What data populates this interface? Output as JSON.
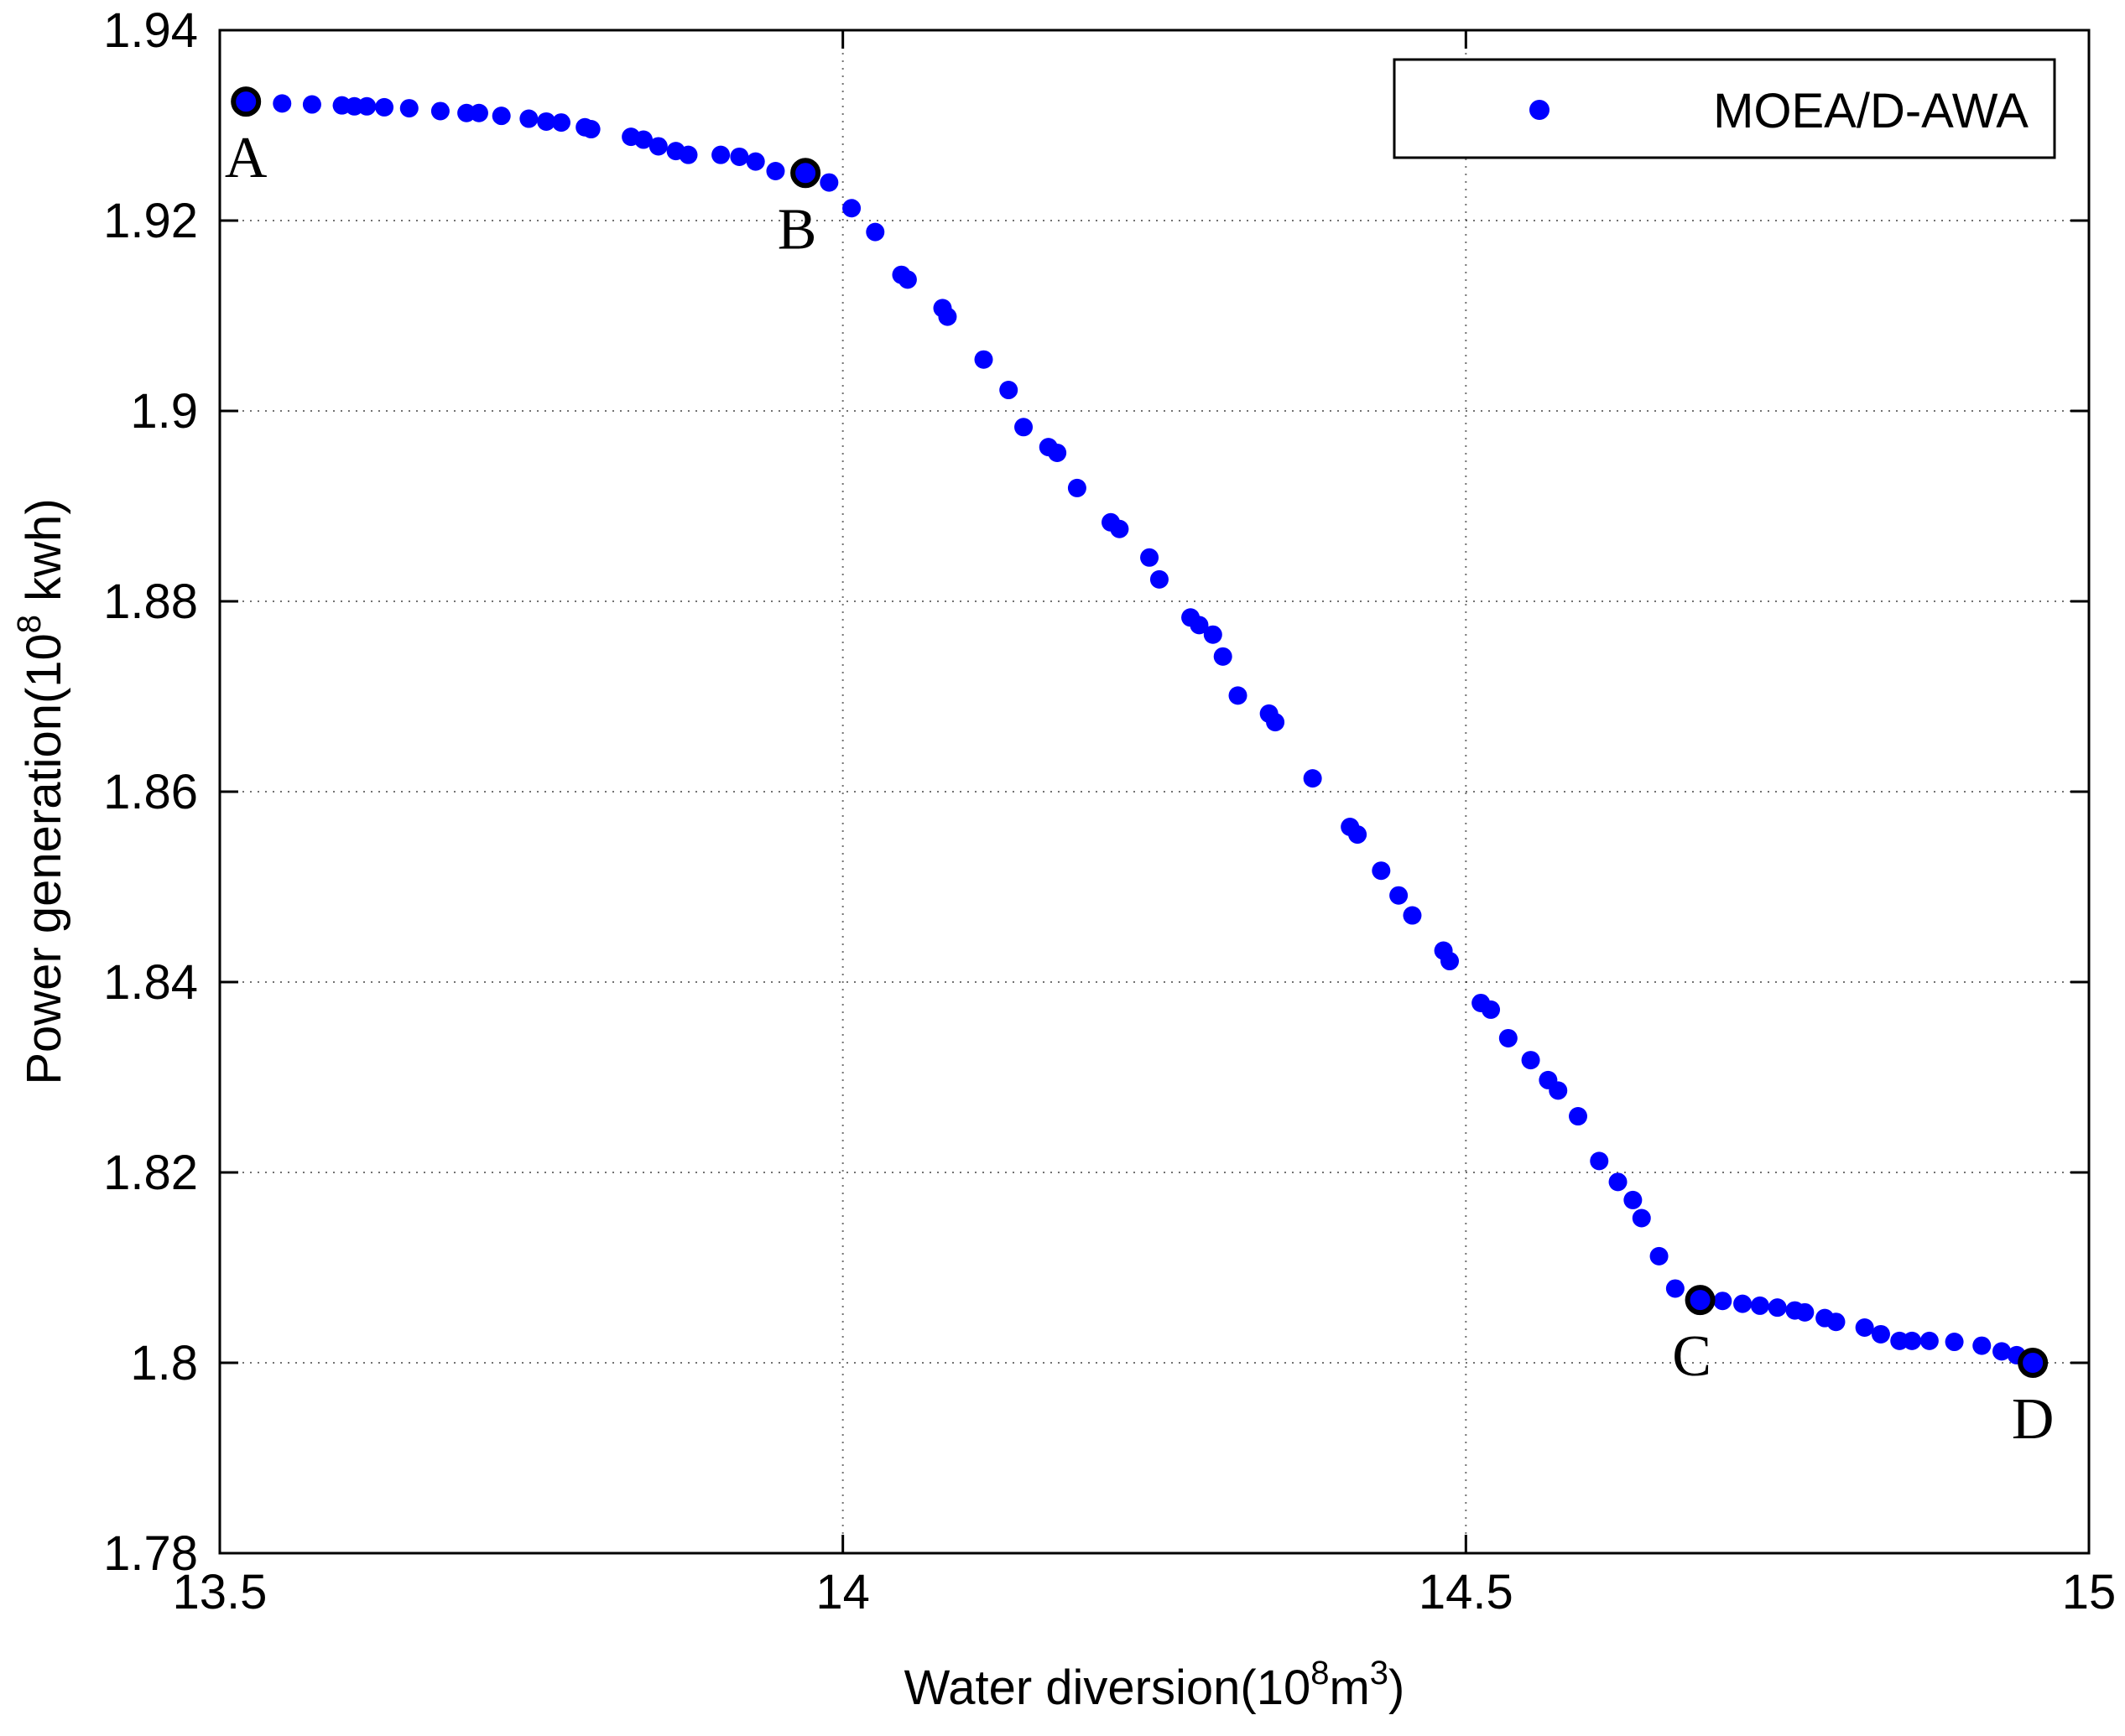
{
  "chart_data": {
    "type": "scatter",
    "title": "",
    "xlabel": {
      "text": "Water diversion(10",
      "sup": "8",
      "mid": "m",
      "sup2": "3",
      "end": ")"
    },
    "ylabel": {
      "text": "Power generation(10",
      "sup": "8",
      "end": " kwh)"
    },
    "xlim": [
      13.5,
      15
    ],
    "ylim": [
      1.78,
      1.94
    ],
    "xticks": [
      13.5,
      14,
      14.5,
      15
    ],
    "xtick_labels": [
      "13.5",
      "14",
      "14.5",
      "15"
    ],
    "yticks": [
      1.78,
      1.8,
      1.82,
      1.84,
      1.86,
      1.88,
      1.9,
      1.92,
      1.94
    ],
    "ytick_labels": [
      "1.78",
      "1.8",
      "1.82",
      "1.84",
      "1.86",
      "1.88",
      "1.9",
      "1.92",
      "1.94"
    ],
    "grid": true,
    "legend": {
      "position": "top-right",
      "entries": [
        "MOEA/D-AWA"
      ]
    },
    "series": [
      {
        "name": "MOEA/D-AWA",
        "color": "#0000ff",
        "x": [
          13.521,
          13.55,
          13.574,
          13.598,
          13.608,
          13.618,
          13.632,
          13.652,
          13.677,
          13.698,
          13.708,
          13.726,
          13.748,
          13.762,
          13.774,
          13.793,
          13.798,
          13.83,
          13.84,
          13.852,
          13.866,
          13.876,
          13.902,
          13.917,
          13.93,
          13.946,
          13.97,
          13.989,
          14.007,
          14.026,
          14.047,
          14.052,
          14.08,
          14.084,
          14.113,
          14.133,
          14.145,
          14.165,
          14.172,
          14.188,
          14.215,
          14.222,
          14.246,
          14.254,
          14.279,
          14.286,
          14.297,
          14.305,
          14.317,
          14.342,
          14.347,
          14.377,
          14.407,
          14.413,
          14.432,
          14.446,
          14.457,
          14.482,
          14.487,
          14.512,
          14.52,
          14.534,
          14.552,
          14.566,
          14.574,
          14.59,
          14.607,
          14.622,
          14.634,
          14.641,
          14.655,
          14.668,
          14.688,
          14.706,
          14.722,
          14.736,
          14.75,
          14.764,
          14.772,
          14.788,
          14.797,
          14.82,
          14.833,
          14.848,
          14.858,
          14.872,
          14.892,
          14.914,
          14.93,
          14.942,
          14.955
        ],
        "y": [
          1.9325,
          1.9323,
          1.9322,
          1.9321,
          1.932,
          1.932,
          1.9319,
          1.9318,
          1.9315,
          1.9313,
          1.9313,
          1.931,
          1.9307,
          1.9304,
          1.9303,
          1.9298,
          1.9296,
          1.9288,
          1.9285,
          1.9278,
          1.9273,
          1.9269,
          1.9269,
          1.9267,
          1.9262,
          1.9252,
          1.925,
          1.924,
          1.9213,
          1.9188,
          1.9143,
          1.9138,
          1.9108,
          1.9099,
          1.9054,
          1.9022,
          1.8983,
          1.8962,
          1.8956,
          1.8919,
          1.8883,
          1.8876,
          1.8846,
          1.8823,
          1.8783,
          1.8775,
          1.8765,
          1.8742,
          1.8701,
          1.8682,
          1.8673,
          1.8614,
          1.8563,
          1.8555,
          1.8517,
          1.8491,
          1.847,
          1.8433,
          1.8422,
          1.8378,
          1.8371,
          1.8341,
          1.8318,
          1.8297,
          1.8286,
          1.8259,
          1.8212,
          1.819,
          1.8171,
          1.8152,
          1.8112,
          1.8078,
          1.8066,
          1.8065,
          1.8062,
          1.806,
          1.8058,
          1.8055,
          1.8053,
          1.8047,
          1.8043,
          1.8037,
          1.803,
          1.8023,
          1.8023,
          1.8023,
          1.8022,
          1.8018,
          1.8012,
          1.8008,
          1.8003
        ]
      }
    ],
    "highlighted_points": [
      {
        "label": "A",
        "x": 13.521,
        "y": 1.9325,
        "label_pos": "below"
      },
      {
        "label": "B",
        "x": 13.97,
        "y": 1.925,
        "label_pos": "below-left"
      },
      {
        "label": "C",
        "x": 14.688,
        "y": 1.8066,
        "label_pos": "below-left"
      },
      {
        "label": "D",
        "x": 14.955,
        "y": 1.8,
        "label_pos": "below"
      }
    ]
  }
}
